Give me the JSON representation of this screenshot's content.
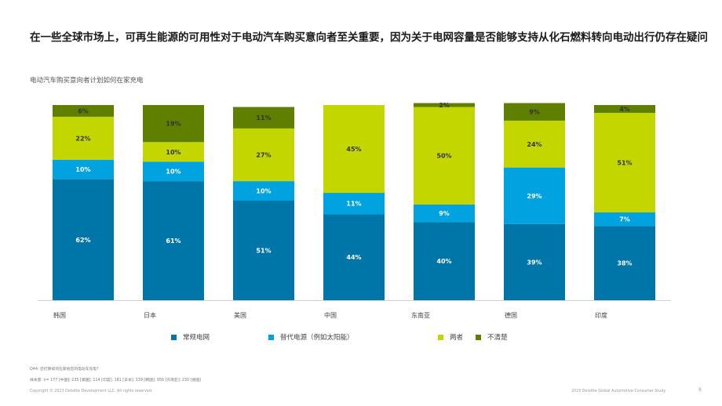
{
  "headline": "在一些全球市场上，可再生能源的可用性对于电动汽车购买意向者至关重要，因为关于电网容量是否能够支持从化石燃料转向电动出行仍存在疑问",
  "chart_data": {
    "type": "bar",
    "stacked": true,
    "percent_stacked": true,
    "title": "电动汽车购买意向者计划如何在家充电",
    "categories": [
      "韩国",
      "日本",
      "美国",
      "中国",
      "东南亚",
      "德国",
      "印度"
    ],
    "ylim": [
      0,
      100
    ],
    "series": [
      {
        "name": "常规电网",
        "color": "#0076A8",
        "values": [
          62,
          61,
          51,
          44,
          40,
          39,
          38
        ]
      },
      {
        "name": "替代电源（例如太阳能）",
        "color": "#00A3E0",
        "values": [
          10,
          10,
          10,
          11,
          9,
          29,
          7
        ]
      },
      {
        "name": "两者",
        "color": "#C4D600",
        "values": [
          22,
          10,
          27,
          45,
          50,
          24,
          51
        ]
      },
      {
        "name": "不清楚",
        "color": "#5F7F00",
        "values": [
          6,
          19,
          11,
          null,
          2,
          9,
          4
        ]
      }
    ],
    "data_label_suffix": "%",
    "legend_position": "bottom",
    "grid": false
  },
  "notes": {
    "question": "Q44: 您打算如何在家给您的电动车充电?",
    "sample": "样本量: n= 177 [中国]; 235 [美国]; 114 [印度]; 181 [日本]; 139 [韩国]; 956 [东南亚]; 230 [德国]"
  },
  "footer": {
    "copyright": "Copyright © 2023 Deloitte Development LLC. All rights reserved.",
    "study": "2023 Deloitte Global Automotive Consumer Study",
    "page": "9"
  }
}
